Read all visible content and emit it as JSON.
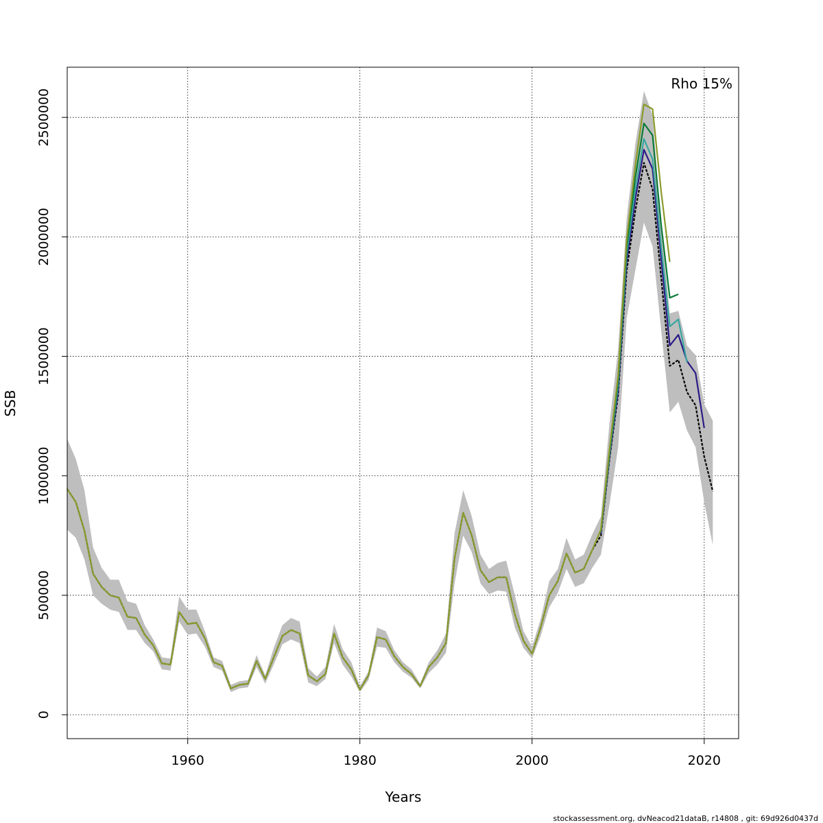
{
  "chart_data": {
    "type": "line",
    "title": "",
    "xlabel": "Years",
    "ylabel": "SSB",
    "annotation": "Rho 15%",
    "footer": "stockassessment.org, dvNeacod21dataB, r14808 , git: 69d926d0437d",
    "xlim": [
      1946,
      2021
    ],
    "ylim": [
      -100000,
      2710000
    ],
    "x_ticks": [
      1960,
      1980,
      2000,
      2020
    ],
    "y_ticks": [
      0,
      500000,
      1000000,
      1500000,
      2000000,
      2500000
    ],
    "x_tick_labels": [
      "1960",
      "1980",
      "2000",
      "2020"
    ],
    "y_tick_labels": [
      "0",
      "500000",
      "1000000",
      "1500000",
      "2000000",
      "2500000"
    ],
    "grid": true,
    "band_color": "#bebebe",
    "confidence_band": {
      "x": [
        1946,
        1947,
        1948,
        1949,
        1950,
        1951,
        1952,
        1953,
        1954,
        1955,
        1956,
        1957,
        1958,
        1959,
        1960,
        1961,
        1962,
        1963,
        1964,
        1965,
        1966,
        1967,
        1968,
        1969,
        1970,
        1971,
        1972,
        1973,
        1974,
        1975,
        1976,
        1977,
        1978,
        1979,
        1980,
        1981,
        1982,
        1983,
        1984,
        1985,
        1986,
        1987,
        1988,
        1989,
        1990,
        1991,
        1992,
        1993,
        1994,
        1995,
        1996,
        1997,
        1998,
        1999,
        2000,
        2001,
        2002,
        2003,
        2004,
        2005,
        2006,
        2007,
        2008,
        2009,
        2010,
        2011,
        2012,
        2013,
        2014,
        2015,
        2016,
        2017,
        2018,
        2019,
        2020,
        2021
      ],
      "lower": [
        775000,
        740000,
        650000,
        500000,
        465000,
        440000,
        430000,
        355000,
        355000,
        300000,
        265000,
        190000,
        185000,
        390000,
        335000,
        340000,
        285000,
        200000,
        185000,
        95000,
        110000,
        115000,
        200000,
        130000,
        210000,
        295000,
        315000,
        300000,
        135000,
        120000,
        150000,
        300000,
        210000,
        160000,
        95000,
        145000,
        285000,
        280000,
        220000,
        180000,
        155000,
        110000,
        175000,
        210000,
        260000,
        550000,
        750000,
        680000,
        550000,
        505000,
        520000,
        515000,
        365000,
        280000,
        235000,
        330000,
        450000,
        510000,
        610000,
        535000,
        550000,
        615000,
        670000,
        880000,
        1120000,
        1660000,
        1860000,
        2060000,
        1960000,
        1610000,
        1265000,
        1310000,
        1190000,
        1120000,
        890000,
        710000
      ],
      "upper": [
        1155000,
        1070000,
        940000,
        700000,
        615000,
        565000,
        565000,
        475000,
        465000,
        375000,
        315000,
        240000,
        235000,
        495000,
        440000,
        440000,
        350000,
        240000,
        225000,
        125000,
        140000,
        145000,
        250000,
        165000,
        280000,
        375000,
        405000,
        390000,
        195000,
        160000,
        200000,
        380000,
        275000,
        220000,
        120000,
        180000,
        365000,
        350000,
        270000,
        220000,
        190000,
        130000,
        220000,
        270000,
        340000,
        760000,
        940000,
        830000,
        670000,
        610000,
        635000,
        645000,
        500000,
        350000,
        285000,
        400000,
        560000,
        610000,
        740000,
        650000,
        670000,
        755000,
        830000,
        1220000,
        1530000,
        2080000,
        2390000,
        2610000,
        2510000,
        2050000,
        1680000,
        1690000,
        1545000,
        1505000,
        1300000,
        1230000
      ]
    },
    "series": [
      {
        "color": "#000000",
        "dash": true,
        "x": [
          1946,
          1947,
          1948,
          1949,
          1950,
          1951,
          1952,
          1953,
          1954,
          1955,
          1956,
          1957,
          1958,
          1959,
          1960,
          1961,
          1962,
          1963,
          1964,
          1965,
          1966,
          1967,
          1968,
          1969,
          1970,
          1971,
          1972,
          1973,
          1974,
          1975,
          1976,
          1977,
          1978,
          1979,
          1980,
          1981,
          1982,
          1983,
          1984,
          1985,
          1986,
          1987,
          1988,
          1989,
          1990,
          1991,
          1992,
          1993,
          1994,
          1995,
          1996,
          1997,
          1998,
          1999,
          2000,
          2001,
          2002,
          2003,
          2004,
          2005,
          2006,
          2007,
          2008,
          2009,
          2010,
          2011,
          2012,
          2013,
          2014,
          2015,
          2016,
          2017,
          2018,
          2019,
          2020,
          2021
        ],
        "values": [
          945000,
          890000,
          770000,
          590000,
          535000,
          500000,
          490000,
          410000,
          405000,
          335000,
          290000,
          215000,
          210000,
          430000,
          380000,
          385000,
          320000,
          220000,
          205000,
          110000,
          125000,
          130000,
          225000,
          150000,
          240000,
          330000,
          355000,
          340000,
          165000,
          140000,
          170000,
          340000,
          240000,
          190000,
          105000,
          165000,
          325000,
          315000,
          245000,
          200000,
          170000,
          120000,
          200000,
          240000,
          300000,
          655000,
          845000,
          750000,
          605000,
          555000,
          575000,
          575000,
          420000,
          310000,
          255000,
          365000,
          500000,
          560000,
          675000,
          595000,
          610000,
          690000,
          750000,
          1070000,
          1340000,
          1860000,
          2110000,
          2310000,
          2200000,
          1830000,
          1460000,
          1485000,
          1350000,
          1295000,
          1080000,
          935000
        ]
      },
      {
        "color": "#2a1a85",
        "dash": false,
        "x": [
          2008,
          2009,
          2010,
          2011,
          2012,
          2013,
          2014,
          2015,
          2016,
          2017,
          2018,
          2019,
          2020
        ],
        "values": [
          760000,
          1080000,
          1360000,
          1900000,
          2160000,
          2365000,
          2285000,
          1910000,
          1545000,
          1590000,
          1480000,
          1430000,
          1200000
        ]
      },
      {
        "color": "#3aa6a0",
        "dash": false,
        "x": [
          2008,
          2009,
          2010,
          2011,
          2012,
          2013,
          2014,
          2015,
          2016,
          2017,
          2018
        ],
        "values": [
          765000,
          1090000,
          1380000,
          1930000,
          2200000,
          2410000,
          2325000,
          1960000,
          1625000,
          1655000,
          1475000
        ]
      },
      {
        "color": "#0a7a36",
        "dash": false,
        "x": [
          2008,
          2009,
          2010,
          2011,
          2012,
          2013,
          2014,
          2015,
          2016,
          2017
        ],
        "values": [
          770000,
          1100000,
          1400000,
          1960000,
          2250000,
          2475000,
          2425000,
          2050000,
          1745000,
          1760000
        ]
      },
      {
        "color": "#8a9a2a",
        "dash": false,
        "x": [
          1946,
          1947,
          1948,
          1949,
          1950,
          1951,
          1952,
          1953,
          1954,
          1955,
          1956,
          1957,
          1958,
          1959,
          1960,
          1961,
          1962,
          1963,
          1964,
          1965,
          1966,
          1967,
          1968,
          1969,
          1970,
          1971,
          1972,
          1973,
          1974,
          1975,
          1976,
          1977,
          1978,
          1979,
          1980,
          1981,
          1982,
          1983,
          1984,
          1985,
          1986,
          1987,
          1988,
          1989,
          1990,
          1991,
          1992,
          1993,
          1994,
          1995,
          1996,
          1997,
          1998,
          1999,
          2000,
          2001,
          2002,
          2003,
          2004,
          2005,
          2006,
          2007,
          2008,
          2009,
          2010,
          2011,
          2012,
          2013,
          2014,
          2015,
          2016
        ],
        "values": [
          945000,
          890000,
          770000,
          590000,
          535000,
          500000,
          490000,
          410000,
          405000,
          335000,
          290000,
          215000,
          210000,
          430000,
          380000,
          385000,
          320000,
          220000,
          205000,
          110000,
          125000,
          130000,
          225000,
          150000,
          240000,
          330000,
          355000,
          340000,
          165000,
          140000,
          170000,
          340000,
          240000,
          190000,
          105000,
          165000,
          325000,
          315000,
          245000,
          200000,
          170000,
          120000,
          200000,
          240000,
          300000,
          655000,
          845000,
          750000,
          605000,
          555000,
          575000,
          575000,
          420000,
          310000,
          255000,
          365000,
          500000,
          560000,
          675000,
          595000,
          610000,
          690000,
          775000,
          1110000,
          1420000,
          1990000,
          2300000,
          2555000,
          2535000,
          2190000,
          1895000
        ]
      }
    ]
  }
}
